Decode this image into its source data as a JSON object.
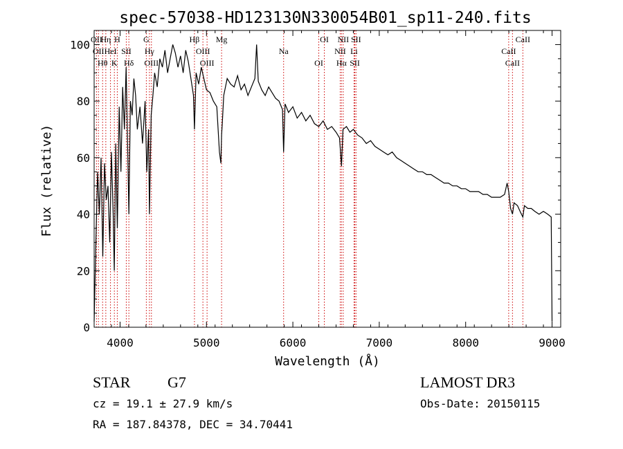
{
  "chart_data": {
    "type": "line",
    "title": "spec-57038-HD123130N330054B01_sp11-240.fits",
    "xlabel": "Wavelength (Å)",
    "ylabel": "Flux (relative)",
    "xlim": [
      3700,
      9100
    ],
    "ylim": [
      0,
      105
    ],
    "xticks": [
      4000,
      5000,
      6000,
      7000,
      8000,
      9000
    ],
    "yticks": [
      0,
      20,
      40,
      60,
      80,
      100
    ],
    "grid": false,
    "series": [
      {
        "name": "spectrum",
        "x": [
          3700,
          3720,
          3740,
          3760,
          3780,
          3800,
          3820,
          3840,
          3860,
          3880,
          3900,
          3920,
          3933,
          3950,
          3968,
          3990,
          4010,
          4030,
          4050,
          4070,
          4090,
          4102,
          4120,
          4140,
          4160,
          4180,
          4200,
          4230,
          4260,
          4290,
          4310,
          4330,
          4340,
          4360,
          4380,
          4400,
          4430,
          4460,
          4490,
          4520,
          4550,
          4580,
          4610,
          4640,
          4670,
          4700,
          4730,
          4760,
          4790,
          4820,
          4850,
          4861,
          4880,
          4910,
          4940,
          4970,
          5000,
          5040,
          5080,
          5120,
          5150,
          5167,
          5175,
          5183,
          5200,
          5240,
          5280,
          5320,
          5360,
          5400,
          5440,
          5480,
          5520,
          5560,
          5580,
          5600,
          5640,
          5680,
          5720,
          5760,
          5800,
          5840,
          5880,
          5893,
          5910,
          5950,
          6000,
          6050,
          6100,
          6150,
          6200,
          6250,
          6300,
          6350,
          6400,
          6450,
          6500,
          6540,
          6563,
          6580,
          6620,
          6660,
          6700,
          6750,
          6800,
          6850,
          6900,
          6950,
          7000,
          7050,
          7100,
          7150,
          7200,
          7250,
          7300,
          7350,
          7400,
          7450,
          7500,
          7550,
          7600,
          7650,
          7700,
          7750,
          7800,
          7850,
          7900,
          7950,
          8000,
          8050,
          8100,
          8150,
          8200,
          8250,
          8300,
          8350,
          8400,
          8450,
          8480,
          8498,
          8520,
          8542,
          8560,
          8600,
          8630,
          8662,
          8680,
          8720,
          8760,
          8800,
          8850,
          8900,
          8950,
          8990,
          9000
        ],
        "y": [
          2,
          30,
          55,
          40,
          60,
          25,
          58,
          45,
          50,
          30,
          62,
          40,
          20,
          65,
          35,
          78,
          55,
          85,
          70,
          92,
          60,
          40,
          80,
          75,
          88,
          82,
          70,
          78,
          65,
          80,
          55,
          70,
          40,
          75,
          82,
          90,
          85,
          95,
          92,
          98,
          90,
          95,
          100,
          97,
          92,
          96,
          90,
          98,
          94,
          88,
          82,
          70,
          90,
          86,
          92,
          88,
          84,
          83,
          80,
          78,
          62,
          58,
          68,
          72,
          82,
          88,
          86,
          85,
          89,
          84,
          86,
          82,
          85,
          88,
          100,
          87,
          84,
          82,
          85,
          83,
          81,
          80,
          77,
          62,
          79,
          76,
          78,
          74,
          76,
          73,
          75,
          72,
          71,
          73,
          70,
          71,
          69,
          67,
          57,
          70,
          71,
          69,
          70,
          68,
          67,
          65,
          66,
          64,
          63,
          62,
          61,
          62,
          60,
          59,
          58,
          57,
          56,
          55,
          55,
          54,
          54,
          53,
          52,
          51,
          51,
          50,
          50,
          49,
          49,
          48,
          48,
          48,
          47,
          47,
          46,
          46,
          46,
          47,
          51,
          48,
          42,
          40,
          44,
          43,
          41,
          39,
          43,
          42,
          42,
          41,
          40,
          41,
          40,
          39,
          2
        ]
      }
    ],
    "line_markers": [
      {
        "wavelength": 3727,
        "label": "OII"
      },
      {
        "wavelength": 3750,
        "label": "OII"
      },
      {
        "wavelength": 3798,
        "label": "Hθ"
      },
      {
        "wavelength": 3835,
        "label": "Hη"
      },
      {
        "wavelength": 3889,
        "label": "HeI"
      },
      {
        "wavelength": 3934,
        "label": "K"
      },
      {
        "wavelength": 3968,
        "label": "H"
      },
      {
        "wavelength": 4072,
        "label": "SII"
      },
      {
        "wavelength": 4102,
        "label": "Hδ"
      },
      {
        "wavelength": 4304,
        "label": "G"
      },
      {
        "wavelength": 4340,
        "label": "Hγ"
      },
      {
        "wavelength": 4363,
        "label": "OIII"
      },
      {
        "wavelength": 4861,
        "label": "Hβ"
      },
      {
        "wavelength": 4959,
        "label": "OIII"
      },
      {
        "wavelength": 5007,
        "label": "OIII"
      },
      {
        "wavelength": 5175,
        "label": "Mg"
      },
      {
        "wavelength": 5893,
        "label": "Na"
      },
      {
        "wavelength": 6300,
        "label": "OI"
      },
      {
        "wavelength": 6364,
        "label": "OI"
      },
      {
        "wavelength": 6548,
        "label": "NII"
      },
      {
        "wavelength": 6563,
        "label": "Hα"
      },
      {
        "wavelength": 6583,
        "label": "NII"
      },
      {
        "wavelength": 6708,
        "label": "Li"
      },
      {
        "wavelength": 6717,
        "label": "SII"
      },
      {
        "wavelength": 6731,
        "label": "SII"
      },
      {
        "wavelength": 8498,
        "label": "CaII"
      },
      {
        "wavelength": 8542,
        "label": "CaII"
      },
      {
        "wavelength": 8662,
        "label": "CaII"
      }
    ],
    "colors": {
      "line": "#000000",
      "marker": "#cc0000"
    }
  },
  "info": {
    "object_class": "STAR",
    "subclass": "G7",
    "redshift": "cz = 19.1 ± 27.9 km/s",
    "coordinates": "RA = 187.84378, DEC =  34.70441",
    "survey": "LAMOST DR3",
    "obs_date": "Obs-Date: 20150115"
  }
}
